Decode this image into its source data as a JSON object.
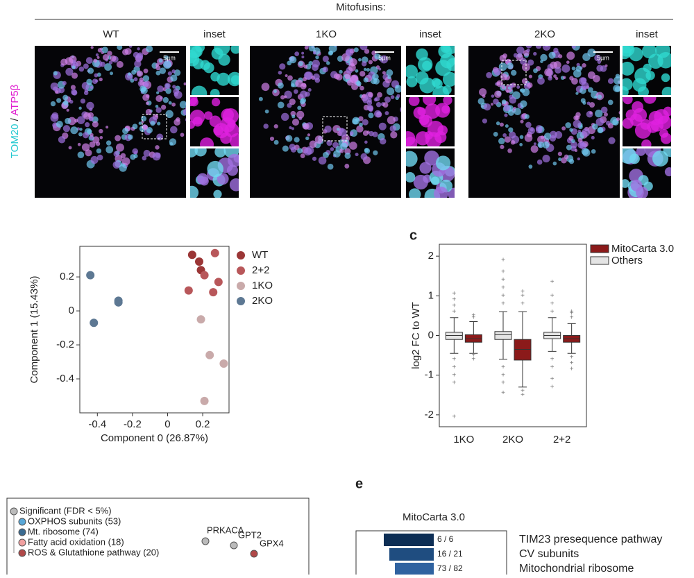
{
  "header": "Mitofusins:",
  "panels": [
    {
      "title": "WT",
      "inset": "inset",
      "scale": "5µm"
    },
    {
      "title": "1KO",
      "inset": "inset",
      "scale": "5µm"
    },
    {
      "title": "2KO",
      "inset": "inset",
      "scale": "5µm"
    }
  ],
  "stain": {
    "a": "TOM20",
    "sep": " / ",
    "b": "ATP5β"
  },
  "panel_labels": [
    "c",
    "e"
  ],
  "chart_data": [
    {
      "type": "scatter",
      "xlabel": "Component 0 (26.87%)",
      "ylabel": "Component 1 (15.43%)",
      "xlim": [
        -0.5,
        0.35
      ],
      "ylim": [
        -0.6,
        0.38
      ],
      "xticks": [
        -0.4,
        -0.2,
        0.0,
        0.2
      ],
      "yticks": [
        -0.4,
        -0.2,
        0.0,
        0.2
      ],
      "series": [
        {
          "name": "WT",
          "color": "#9b3636",
          "x": [
            0.14,
            0.18,
            0.19
          ],
          "values": [
            0.33,
            0.29,
            0.24
          ]
        },
        {
          "name": "2+2",
          "color": "#b8575a",
          "x": [
            0.27,
            0.21,
            0.29,
            0.12,
            0.26
          ],
          "values": [
            0.34,
            0.21,
            0.17,
            0.12,
            0.11
          ]
        },
        {
          "name": "1KO",
          "color": "#c9aaaa",
          "x": [
            0.19,
            0.24,
            0.32,
            0.21
          ],
          "values": [
            -0.05,
            -0.26,
            -0.31,
            -0.53
          ]
        },
        {
          "name": "2KO",
          "color": "#5d7893",
          "x": [
            -0.44,
            -0.28,
            -0.28,
            -0.42
          ],
          "values": [
            0.21,
            0.06,
            0.05,
            -0.07
          ]
        }
      ]
    },
    {
      "type": "box",
      "ylabel": "log2 FC to WT",
      "categories": [
        "1KO",
        "2KO",
        "2+2"
      ],
      "ylim": [
        -2.3,
        2.3
      ],
      "yticks": [
        -2,
        -1,
        0,
        1,
        2
      ],
      "series": [
        {
          "name": "MitoCarta 3.0",
          "color": "#8b1a1a",
          "whislo": [
            -0.45,
            -1.3,
            -0.45
          ],
          "q1": [
            -0.17,
            -0.62,
            -0.17
          ],
          "median": [
            -0.08,
            -0.35,
            -0.08
          ],
          "q3": [
            0.02,
            -0.1,
            0.0
          ],
          "whishi": [
            0.35,
            0.6,
            0.3
          ],
          "outliers": [
            [
              0.5,
              0.45,
              -0.5,
              -0.6
            ],
            [
              0.8,
              1.0,
              1.1,
              -1.4,
              -1.5
            ],
            [
              0.45,
              0.55,
              0.6,
              -0.55,
              -0.7,
              -0.85
            ]
          ]
        },
        {
          "name": "Others",
          "color": "#e4e4e4",
          "whislo": [
            -0.45,
            -0.6,
            -0.4
          ],
          "q1": [
            -0.1,
            -0.1,
            -0.08
          ],
          "median": [
            0.0,
            0.02,
            0.0
          ],
          "q3": [
            0.08,
            0.1,
            0.08
          ],
          "whishi": [
            0.45,
            0.6,
            0.45
          ],
          "outliers": [
            [
              1.05,
              0.9,
              0.75,
              0.6,
              -0.6,
              -0.8,
              -1.0,
              -1.2,
              -2.05
            ],
            [
              1.9,
              1.6,
              1.4,
              1.2,
              1.0,
              0.8,
              -0.8,
              -1.0,
              -1.2,
              -1.45
            ],
            [
              1.35,
              1.0,
              0.8,
              0.6,
              -0.6,
              -0.8,
              -1.1,
              -1.3
            ]
          ]
        }
      ]
    }
  ],
  "legend_d": [
    "Significant (FDR < 5%)",
    "OXPHOS subunits (53)",
    "Mt. ribosome (74)",
    "Fatty acid oxidation (18)",
    "ROS & Glutathione pathway (20)"
  ],
  "labels_d": [
    "PRKACA",
    "GPT2",
    "GPX4"
  ],
  "panel_e": {
    "title": "MitoCarta 3.0",
    "rows": [
      {
        "count": "6 / 6",
        "name": "TIM23 presequence pathway"
      },
      {
        "count": "16 / 21",
        "name": "CV subunits"
      },
      {
        "count": "73 / 82",
        "name": "Mitochondrial ribosome"
      }
    ]
  }
}
